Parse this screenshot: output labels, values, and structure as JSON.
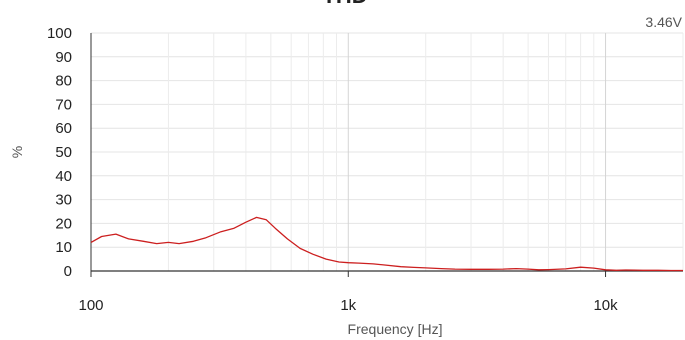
{
  "chart_data": {
    "type": "line",
    "title": "THD",
    "annotation": "3.46V",
    "xlabel": "Frequency [Hz]",
    "ylabel": "%",
    "x_scale": "log",
    "xlim": [
      100,
      20000
    ],
    "ylim": [
      0,
      100
    ],
    "grid": true,
    "x_ticks": [
      {
        "value": 100,
        "label": "100"
      },
      {
        "value": 1000,
        "label": "1k"
      },
      {
        "value": 10000,
        "label": "10k"
      }
    ],
    "y_ticks": [
      0,
      10,
      20,
      30,
      40,
      50,
      60,
      70,
      80,
      90,
      100
    ],
    "series_color": "#cc1f1f",
    "series": [
      {
        "x": [
          100,
          110,
          125,
          140,
          160,
          180,
          200,
          220,
          250,
          280,
          320,
          360,
          400,
          440,
          480,
          520,
          580,
          650,
          730,
          820,
          920,
          1000,
          1100,
          1250,
          1400,
          1600,
          1800,
          2000,
          2300,
          2600,
          3000,
          3500,
          4000,
          4500,
          5000,
          5500,
          6000,
          7000,
          8000,
          9000,
          10000,
          11000,
          12000,
          14000,
          16000,
          18000,
          20000
        ],
        "y": [
          12,
          14.5,
          15.5,
          13.5,
          12.5,
          11.5,
          12,
          11.5,
          12.5,
          14,
          16.5,
          18,
          20.5,
          22.5,
          21.5,
          18,
          13.5,
          9.5,
          7,
          5,
          3.8,
          3.5,
          3.3,
          3.0,
          2.5,
          1.8,
          1.5,
          1.3,
          1.0,
          0.8,
          0.7,
          0.7,
          0.8,
          1.0,
          0.8,
          0.5,
          0.6,
          0.9,
          1.6,
          1.2,
          0.5,
          0.3,
          0.4,
          0.3,
          0.3,
          0.2,
          0.2
        ]
      }
    ]
  }
}
